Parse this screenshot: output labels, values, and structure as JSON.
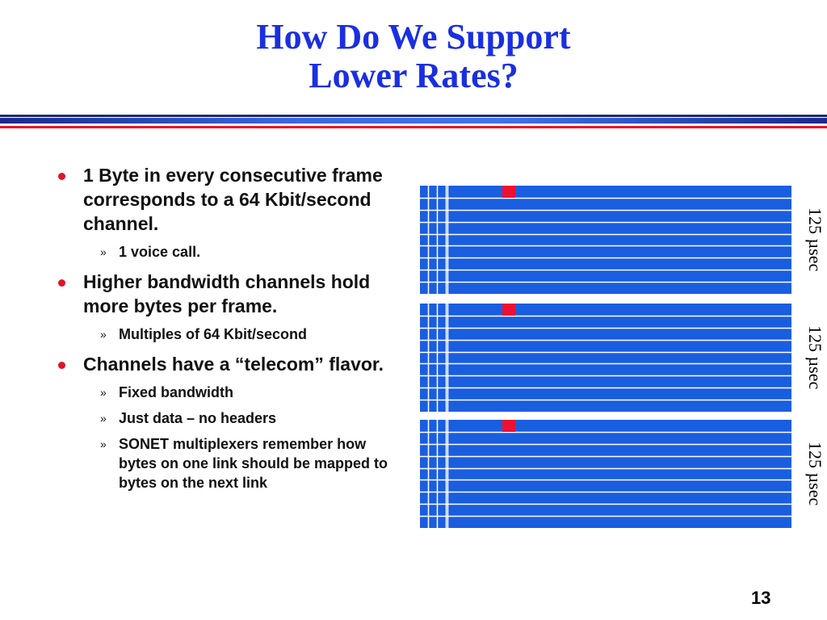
{
  "slide": {
    "title_line1": "How Do We Support",
    "title_line2": "Lower Rates?",
    "page_number": "13"
  },
  "bullets": [
    {
      "text": "1 Byte in every consecutive frame corresponds to a 64 Kbit/second channel.",
      "sub": [
        "1 voice call."
      ]
    },
    {
      "text": "Higher bandwidth channels hold more bytes per frame.",
      "sub": [
        "Multiples of 64 Kbit/second"
      ]
    },
    {
      "text": "Channels have a “telecom” flavor.",
      "sub": [
        "Fixed bandwidth",
        "Just data – no headers",
        "SONET multiplexers remember how bytes on one link should be mapped to bytes on the next link"
      ]
    }
  ],
  "frames": {
    "time_label": "125 µsec",
    "count": 3,
    "rows_per_frame": 9,
    "overhead_columns": 3,
    "frame_color": "#1a5ee0",
    "line_color": "#ffffff",
    "highlight_color": "#ee1030"
  },
  "colors": {
    "title": "#1a2fe0",
    "bullet_dot": "#e01428",
    "rule_red": "#e8142c",
    "rule_blue": "#3a67e0"
  }
}
